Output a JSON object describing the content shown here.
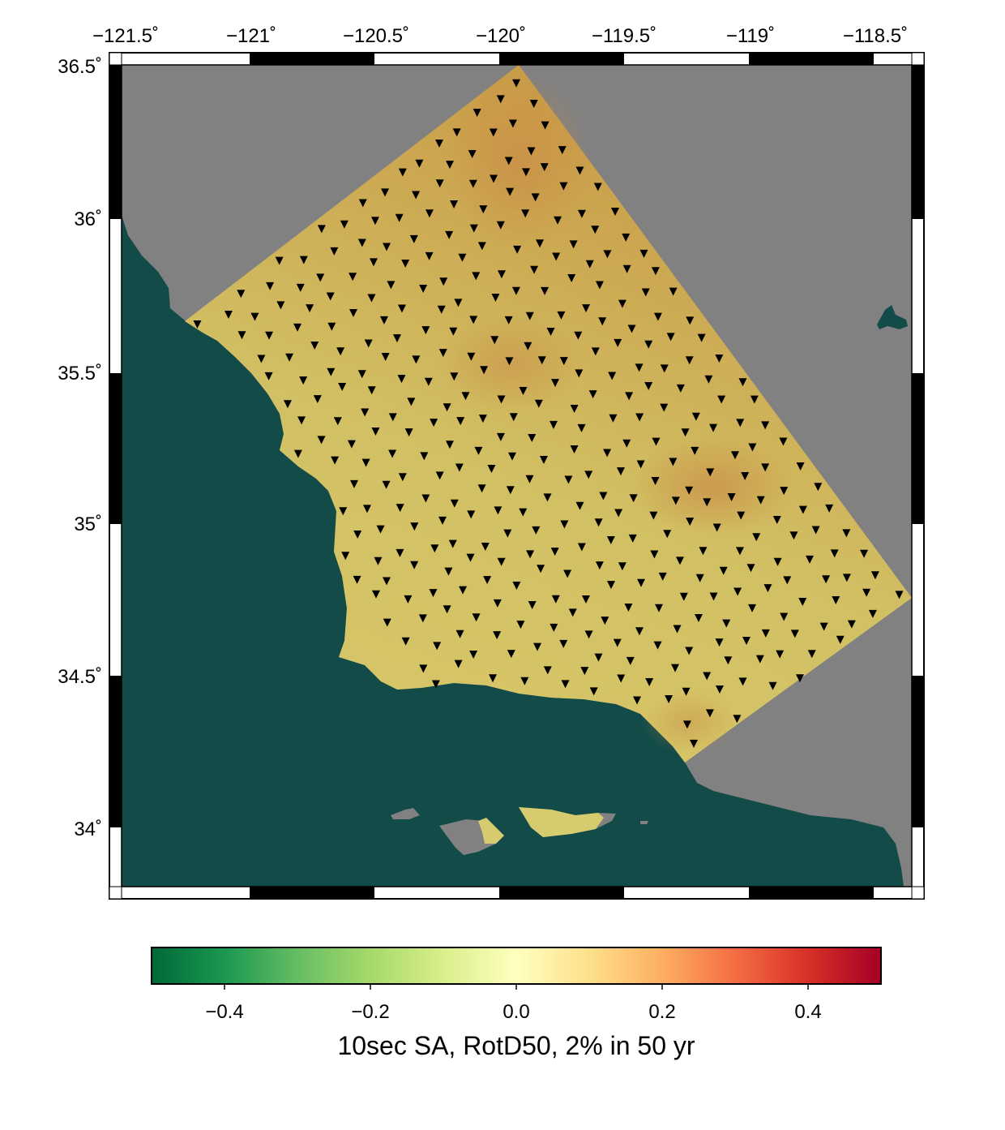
{
  "map": {
    "lon_labels": [
      "−121.5˚",
      "−121˚",
      "−120.5˚",
      "−120˚",
      "−119.5˚",
      "−119˚",
      "−118.5˚"
    ],
    "lat_labels": [
      "36.5˚",
      "36˚",
      "35.5˚",
      "35˚",
      "34.5˚",
      "34˚"
    ],
    "colors": {
      "ocean": "#124b48",
      "land": "#818181",
      "frame": "#000000",
      "station": "#000000"
    },
    "station_marker": "inverted-triangle"
  },
  "colorbar": {
    "tick_labels": [
      "−0.4",
      "−0.2",
      "0.0",
      "0.2",
      "0.4"
    ],
    "title": "10sec SA, RotD50, 2% in 50 yr",
    "range": [
      -0.5,
      0.5
    ],
    "colors": [
      "#006837",
      "#1a9850",
      "#66bd63",
      "#a6d96a",
      "#d9ef8b",
      "#ffffbf",
      "#fee08b",
      "#fdae61",
      "#f46d43",
      "#d73027",
      "#a50026"
    ]
  }
}
